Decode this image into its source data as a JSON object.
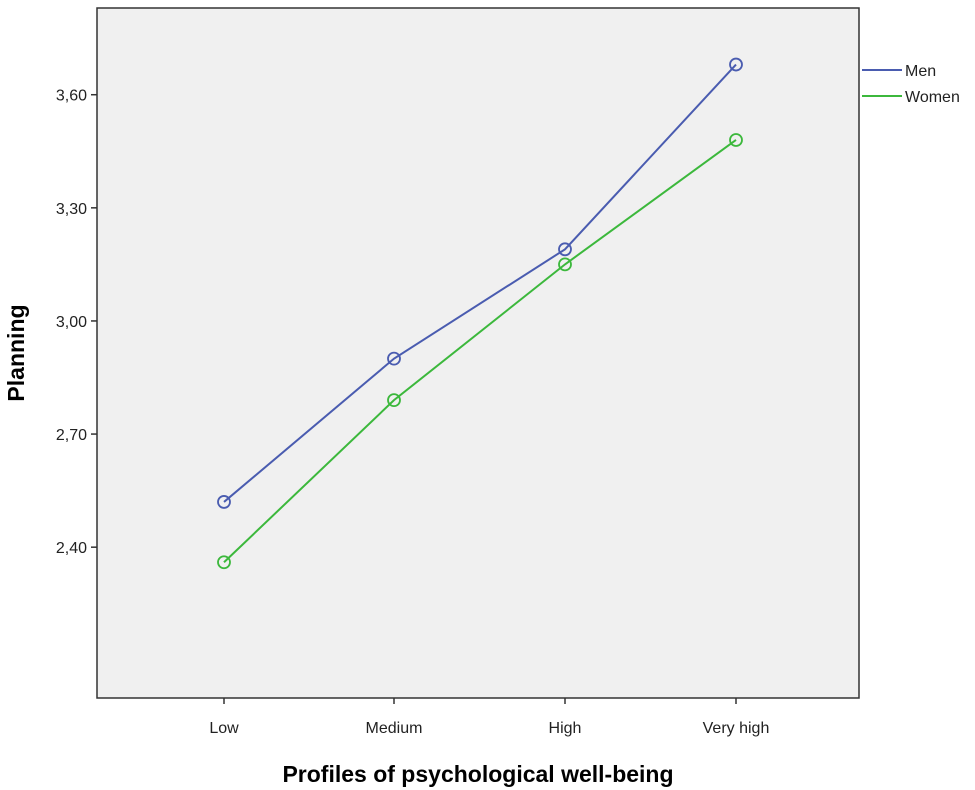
{
  "chart_data": {
    "type": "line",
    "title": "",
    "xlabel": "Profiles of psychological well-being",
    "ylabel": "Planning",
    "categories": [
      "Low",
      "Medium",
      "High",
      "Very high"
    ],
    "ylim": [
      2.0,
      3.83
    ],
    "yticks": [
      2.4,
      2.7,
      3.0,
      3.3,
      3.6
    ],
    "ytick_labels": [
      "2,40",
      "2,70",
      "3,00",
      "3,30",
      "3,60"
    ],
    "grid": false,
    "legend_position": "right",
    "plot_background": "#f0f0f0",
    "series": [
      {
        "name": "Men",
        "color": "#4a5cb0",
        "values": [
          2.52,
          2.9,
          3.19,
          3.68
        ]
      },
      {
        "name": "Women",
        "color": "#3cb83c",
        "values": [
          2.36,
          2.79,
          3.15,
          3.48
        ]
      }
    ]
  }
}
